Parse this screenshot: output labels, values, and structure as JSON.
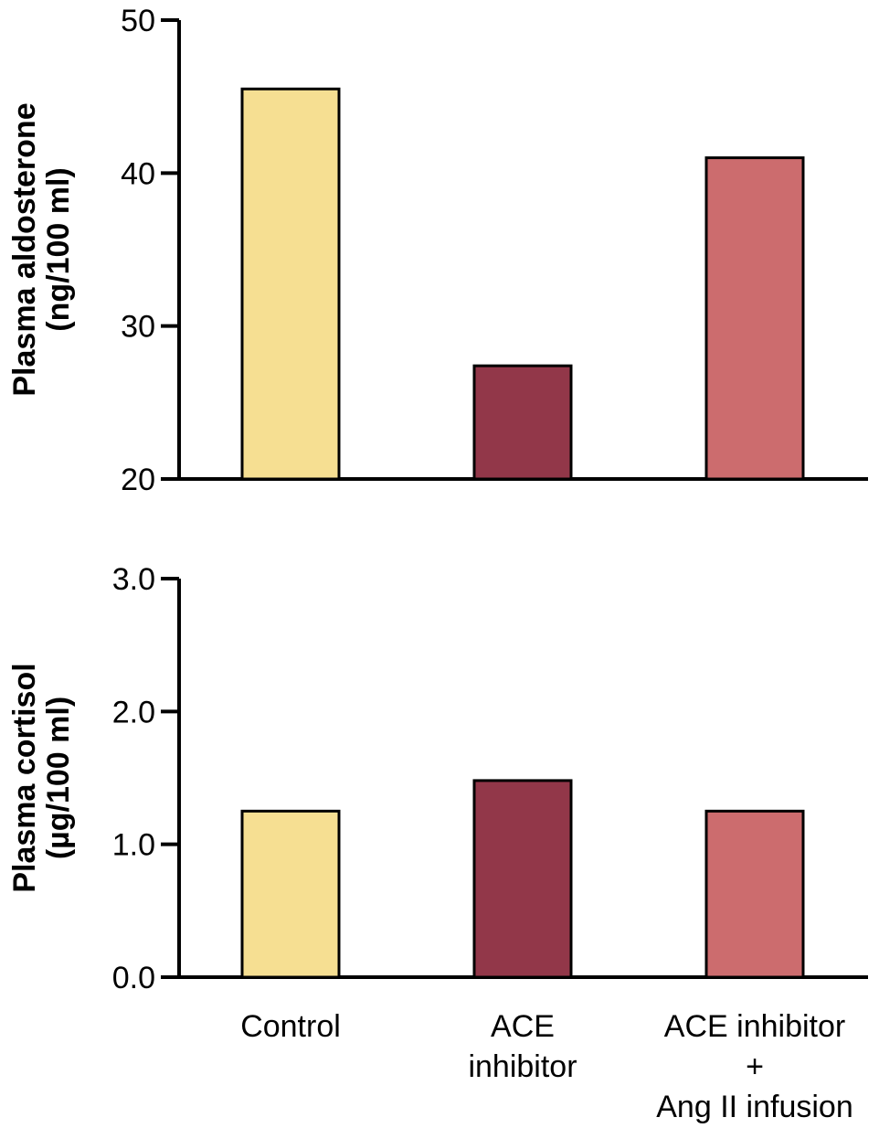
{
  "categories": [
    {
      "lines": [
        "Control"
      ]
    },
    {
      "lines": [
        "ACE",
        "inhibitor"
      ]
    },
    {
      "lines": [
        "ACE inhibitor",
        "+",
        "Ang II infusion"
      ]
    }
  ],
  "colors": {
    "control": "#F6DF92",
    "ace_inhibitor": "#923749",
    "ace_inhibitor_ang_ii": "#CC6C6E",
    "outline": "#000000"
  },
  "chart_data": [
    {
      "type": "bar",
      "categories": [
        "Control",
        "ACE inhibitor",
        "ACE inhibitor + Ang II infusion"
      ],
      "values": [
        45.5,
        27.4,
        41
      ],
      "ylabel": [
        "Plasma aldosterone",
        "(ng/100 ml)"
      ],
      "ylim": [
        20,
        50
      ],
      "yticks": [
        20,
        30,
        40,
        50
      ],
      "tick_labels": [
        "20",
        "30",
        "40",
        "50"
      ],
      "grid": false
    },
    {
      "type": "bar",
      "categories": [
        "Control",
        "ACE inhibitor",
        "ACE inhibitor + Ang II infusion"
      ],
      "values": [
        1.25,
        1.48,
        1.25
      ],
      "ylabel": [
        "Plasma cortisol",
        "(µg/100 ml)"
      ],
      "ylim": [
        0,
        3
      ],
      "yticks": [
        0,
        1,
        2,
        3
      ],
      "tick_labels": [
        "0.0",
        "1.0",
        "2.0",
        "3.0"
      ],
      "grid": false
    }
  ]
}
